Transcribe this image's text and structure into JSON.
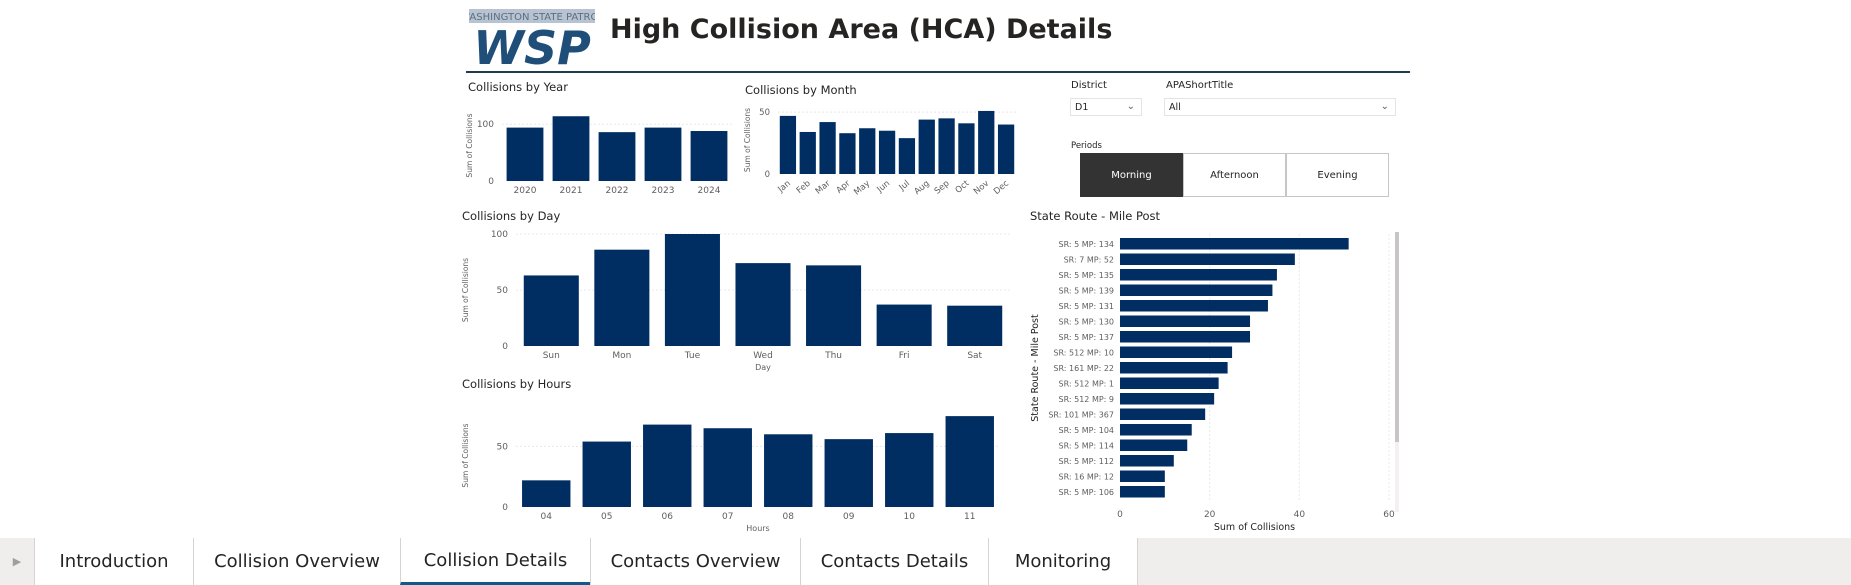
{
  "header": {
    "logo_top_text": "WASHINGTON STATE PATROL",
    "logo_letters": "WSP",
    "title": "High Collision Area (HCA) Details"
  },
  "filters": {
    "district": {
      "label": "District",
      "value": "D1"
    },
    "apa": {
      "label": "APAShortTitle",
      "value": "All"
    },
    "periods": {
      "label": "Periods",
      "options": [
        "Morning",
        "Afternoon",
        "Evening"
      ],
      "selected": "Morning"
    }
  },
  "chart_data": [
    {
      "type": "bar",
      "title": "Collisions by Year",
      "ylabel": "Sum of Collisions",
      "categories": [
        "2020",
        "2021",
        "2022",
        "2023",
        "2024"
      ],
      "values": [
        94,
        114,
        86,
        94,
        88
      ],
      "ylim": [
        0,
        125
      ],
      "yticks": [
        0,
        100
      ]
    },
    {
      "type": "bar",
      "title": "Collisions by Month",
      "ylabel": "Sum of Collisions",
      "categories": [
        "Jan",
        "Feb",
        "Mar",
        "Apr",
        "May",
        "Jun",
        "Jul",
        "Aug",
        "Sep",
        "Oct",
        "Nov",
        "Dec"
      ],
      "values": [
        47,
        34,
        42,
        33,
        37,
        35,
        29,
        44,
        45,
        41,
        51,
        40
      ],
      "ylim": [
        0,
        55
      ],
      "yticks": [
        0,
        50
      ]
    },
    {
      "type": "bar",
      "title": "Collisions by Day",
      "ylabel": "Sum of Collisions",
      "xlabel": "Day",
      "categories": [
        "Sun",
        "Mon",
        "Tue",
        "Wed",
        "Thu",
        "Fri",
        "Sat"
      ],
      "values": [
        63,
        86,
        100,
        74,
        72,
        37,
        36
      ],
      "ylim": [
        0,
        100
      ],
      "yticks": [
        0,
        50,
        100
      ]
    },
    {
      "type": "bar",
      "title": "Collisions by Hours",
      "ylabel": "Sum of Collisions",
      "xlabel": "Hours",
      "categories": [
        "04",
        "05",
        "06",
        "07",
        "08",
        "09",
        "10",
        "11"
      ],
      "values": [
        22,
        54,
        68,
        65,
        60,
        56,
        61,
        75
      ],
      "ylim": [
        0,
        85
      ],
      "yticks": [
        0,
        50
      ]
    },
    {
      "type": "bar",
      "orientation": "horizontal",
      "title": "State Route - Mile Post",
      "ylabel": "State Route - Mile Post",
      "xlabel": "Sum of Collisions",
      "categories": [
        "SR: 5 MP: 134",
        "SR: 7 MP: 52",
        "SR: 5 MP: 135",
        "SR: 5 MP: 139",
        "SR: 5 MP: 131",
        "SR: 5 MP: 130",
        "SR: 5 MP: 137",
        "SR: 512 MP: 10",
        "SR: 161 MP: 22",
        "SR: 512 MP: 1",
        "SR: 512 MP: 9",
        "SR: 101 MP: 367",
        "SR: 5 MP: 104",
        "SR: 5 MP: 114",
        "SR: 5 MP: 112",
        "SR: 16 MP: 12",
        "SR: 5 MP: 106"
      ],
      "values": [
        51,
        39,
        35,
        34,
        33,
        29,
        29,
        25,
        24,
        22,
        21,
        19,
        16,
        15,
        12,
        10,
        10
      ],
      "xlim": [
        0,
        60
      ],
      "xticks": [
        0,
        20,
        40,
        60
      ]
    }
  ],
  "colors": {
    "bar": "#002D62",
    "title_rule": "#1f3b4d",
    "selected_period": "#333333"
  },
  "tabs": {
    "items": [
      "Introduction",
      "Collision Overview",
      "Collision Details",
      "Contacts Overview",
      "Contacts Details",
      "Monitoring"
    ],
    "active": "Collision Details"
  }
}
